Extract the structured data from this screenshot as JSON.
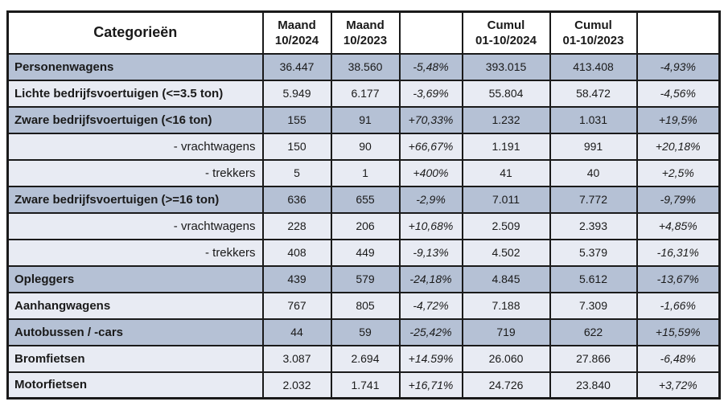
{
  "table": {
    "colors": {
      "row_dark": "#b5c1d5",
      "row_light": "#e8ebf3",
      "header_bg": "#ffffff",
      "border": "#1a1a1a",
      "text": "#1a1a1a"
    },
    "header": {
      "category": "Categorieën",
      "columns": [
        {
          "line1": "Maand",
          "line2": "10/2024"
        },
        {
          "line1": "Maand",
          "line2": "10/2023"
        },
        {
          "line1": "",
          "line2": ""
        },
        {
          "line1": "Cumul",
          "line2": "01-10/2024"
        },
        {
          "line1": "Cumul",
          "line2": "01-10/2023"
        },
        {
          "line1": "",
          "line2": ""
        }
      ]
    },
    "rows": [
      {
        "label": "Personenwagens",
        "style": "main-dark",
        "values": [
          "36.447",
          "38.560",
          "-5,48%",
          "393.015",
          "413.408",
          "-4,93%"
        ]
      },
      {
        "label": "Lichte bedrijfsvoertuigen (<=3.5 ton)",
        "style": "main-light",
        "values": [
          "5.949",
          "6.177",
          "-3,69%",
          "55.804",
          "58.472",
          "-4,56%"
        ]
      },
      {
        "label": "Zware bedrijfsvoertuigen (<16 ton)",
        "style": "main-dark",
        "values": [
          "155",
          "91",
          "+70,33%",
          "1.232",
          "1.031",
          "+19,5%"
        ]
      },
      {
        "label": "- vrachtwagens",
        "style": "sub",
        "values": [
          "150",
          "90",
          "+66,67%",
          "1.191",
          "991",
          "+20,18%"
        ]
      },
      {
        "label": "- trekkers",
        "style": "sub",
        "values": [
          "5",
          "1",
          "+400%",
          "41",
          "40",
          "+2,5%"
        ]
      },
      {
        "label": "Zware bedrijfsvoertuigen (>=16 ton)",
        "style": "main-dark",
        "values": [
          "636",
          "655",
          "-2,9%",
          "7.011",
          "7.772",
          "-9,79%"
        ]
      },
      {
        "label": "- vrachtwagens",
        "style": "sub",
        "values": [
          "228",
          "206",
          "+10,68%",
          "2.509",
          "2.393",
          "+4,85%"
        ]
      },
      {
        "label": "- trekkers",
        "style": "sub",
        "values": [
          "408",
          "449",
          "-9,13%",
          "4.502",
          "5.379",
          "-16,31%"
        ]
      },
      {
        "label": "Opleggers",
        "style": "main-dark",
        "values": [
          "439",
          "579",
          "-24,18%",
          "4.845",
          "5.612",
          "-13,67%"
        ]
      },
      {
        "label": "Aanhangwagens",
        "style": "main-light",
        "values": [
          "767",
          "805",
          "-4,72%",
          "7.188",
          "7.309",
          "-1,66%"
        ]
      },
      {
        "label": "Autobussen / -cars",
        "style": "main-dark",
        "values": [
          "44",
          "59",
          "-25,42%",
          "719",
          "622",
          "+15,59%"
        ]
      },
      {
        "label": "Bromfietsen",
        "style": "main-light",
        "values": [
          "3.087",
          "2.694",
          "+14.59%",
          "26.060",
          "27.866",
          "-6,48%"
        ]
      },
      {
        "label": "Motorfietsen",
        "style": "main-light",
        "values": [
          "2.032",
          "1.741",
          "+16,71%",
          "24.726",
          "23.840",
          "+3,72%"
        ]
      }
    ]
  }
}
